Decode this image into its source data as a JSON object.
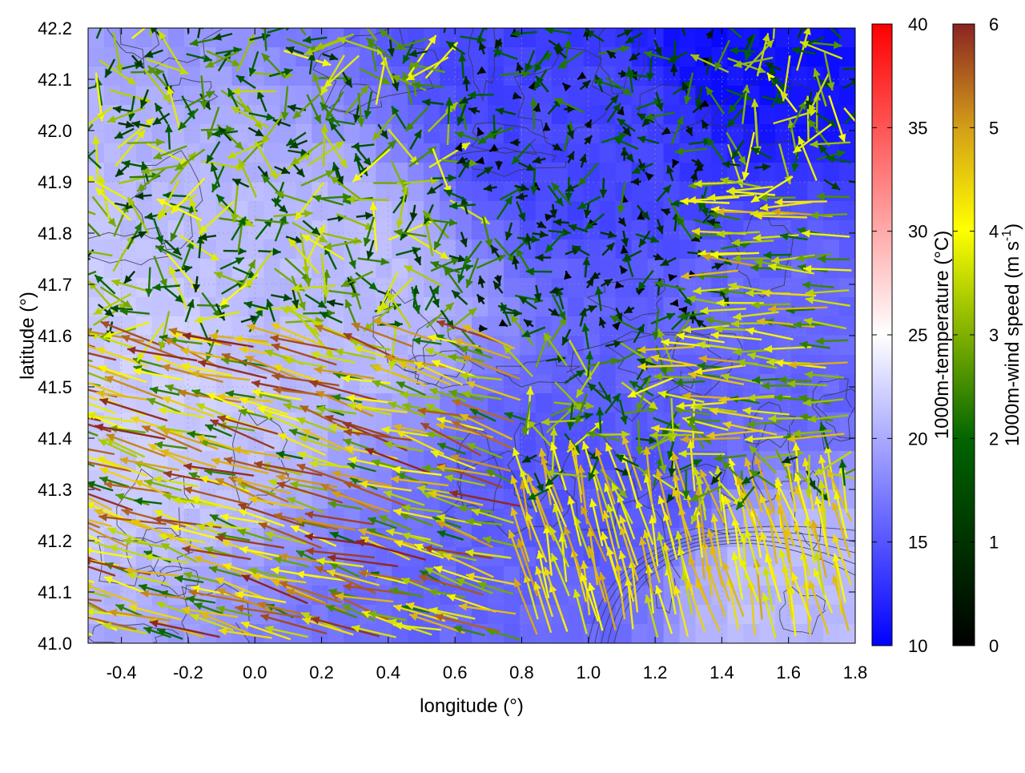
{
  "chart_data": {
    "type": "heatmap",
    "title": "",
    "xlabel": "longitude (°)",
    "ylabel": "latitude (°)",
    "xlim": [
      -0.5,
      1.8
    ],
    "ylim": [
      41.0,
      42.2
    ],
    "x_ticks": [
      "-0.4",
      "-0.2",
      "0.0",
      "0.2",
      "0.4",
      "0.6",
      "0.8",
      "1.0",
      "1.2",
      "1.4",
      "1.6",
      "1.8"
    ],
    "y_ticks": [
      "41.0",
      "41.1",
      "41.2",
      "41.3",
      "41.4",
      "41.5",
      "41.6",
      "41.7",
      "41.8",
      "41.9",
      "42.0",
      "42.1",
      "42.2"
    ],
    "grid": true,
    "layers": [
      "temperature heatmap",
      "terrain contours",
      "wind vectors"
    ],
    "temperature_colorbar": {
      "label": "1000m-temperature (°C)",
      "range": [
        10,
        40
      ],
      "ticks": [
        "10",
        "15",
        "20",
        "25",
        "30",
        "35",
        "40"
      ],
      "colors": [
        "#0000ff",
        "#ffffff",
        "#ff0000"
      ]
    },
    "wind_colorbar": {
      "label": "1000m-wind speed (m s",
      "label_sup": "-1",
      "label_end": ")",
      "range": [
        0,
        6
      ],
      "ticks": [
        "0",
        "1",
        "2",
        "3",
        "4",
        "5",
        "6"
      ],
      "colors": [
        "#000000",
        "#006400",
        "#ffff00",
        "#d4a017",
        "#8b2323"
      ]
    },
    "temperature_field_approx": {
      "description_points": [
        {
          "lon": -0.4,
          "lat": 41.5,
          "temp": 22
        },
        {
          "lon": 0.2,
          "lat": 41.7,
          "temp": 21
        },
        {
          "lon": 1.0,
          "lat": 42.0,
          "temp": 14
        },
        {
          "lon": 1.5,
          "lat": 42.15,
          "temp": 11
        },
        {
          "lon": 1.6,
          "lat": 41.6,
          "temp": 16
        },
        {
          "lon": 1.6,
          "lat": 41.1,
          "temp": 21
        },
        {
          "lon": 0.8,
          "lat": 41.0,
          "temp": 16
        },
        {
          "lon": 1.05,
          "lat": 41.3,
          "temp": 15
        }
      ]
    },
    "wind_field_approx": {
      "regions": [
        {
          "lon_range": [
            -0.5,
            0.8
          ],
          "lat_range": [
            41.0,
            41.6
          ],
          "direction": "toward west-northwest",
          "speed_range": [
            2,
            6
          ]
        },
        {
          "lon_range": [
            0.8,
            1.8
          ],
          "lat_range": [
            41.0,
            41.3
          ],
          "direction": "toward north-northwest",
          "speed_range": [
            3.5,
            5
          ]
        },
        {
          "lon_range": [
            0.6,
            1.4
          ],
          "lat_range": [
            41.6,
            42.2
          ],
          "direction": "variable",
          "speed_range": [
            0,
            2.5
          ]
        },
        {
          "lon_range": [
            1.3,
            1.8
          ],
          "lat_range": [
            41.4,
            41.9
          ],
          "direction": "toward west",
          "speed_range": [
            2,
            5
          ]
        }
      ]
    }
  }
}
